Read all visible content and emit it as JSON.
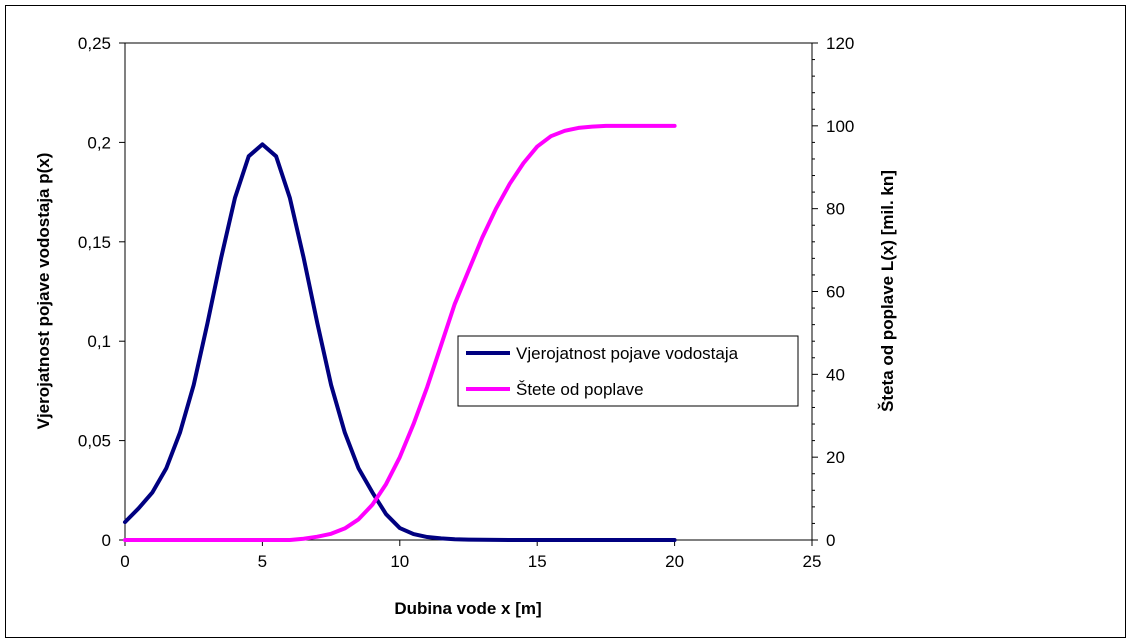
{
  "chart_data": {
    "type": "line",
    "title": "",
    "xlabel": "Dubina vode x [m]",
    "ylabel": "Vjerojatnost pojave vodostaja p(x)",
    "y2label": "Šteta od poplave L(x) [mil. kn]",
    "xlim": [
      0,
      25
    ],
    "ylim": [
      0,
      0.25
    ],
    "y2lim": [
      0,
      120
    ],
    "x_ticks": [
      0,
      5,
      10,
      15,
      20,
      25
    ],
    "x_tick_labels": [
      "0",
      "5",
      "10",
      "15",
      "20",
      "25"
    ],
    "y_ticks": [
      0,
      0.05,
      0.1,
      0.15,
      0.2,
      0.25
    ],
    "y_tick_labels": [
      "0",
      "0,05",
      "0,1",
      "0,15",
      "0,2",
      "0,25"
    ],
    "y2_ticks": [
      0,
      20,
      40,
      60,
      80,
      100,
      120
    ],
    "y2_tick_labels": [
      "0",
      "20",
      "40",
      "60",
      "80",
      "100",
      "120"
    ],
    "grid": false,
    "legend_position": "center-right",
    "series": [
      {
        "name": "Vjerojatnost pojave vodostaja",
        "axis": "left",
        "color": "#000080",
        "x": [
          0,
          0.5,
          1,
          1.5,
          2,
          2.5,
          3,
          3.5,
          4,
          4.5,
          5,
          5.5,
          6,
          6.5,
          7,
          7.5,
          8,
          8.5,
          9,
          9.5,
          10,
          10.5,
          11,
          11.5,
          12,
          12.5,
          13,
          14,
          15,
          16,
          17,
          18,
          19,
          20
        ],
        "y": [
          0.009,
          0.016,
          0.024,
          0.036,
          0.054,
          0.078,
          0.109,
          0.142,
          0.172,
          0.193,
          0.199,
          0.193,
          0.172,
          0.142,
          0.109,
          0.078,
          0.054,
          0.036,
          0.024,
          0.013,
          0.006,
          0.003,
          0.0015,
          0.0008,
          0.0004,
          0.0002,
          0.0001,
          0,
          0,
          0,
          0,
          0,
          0,
          0
        ]
      },
      {
        "name": "Štete od poplave",
        "axis": "right",
        "color": "#FF00FF",
        "x": [
          0,
          1,
          2,
          3,
          4,
          5,
          6,
          6.5,
          7,
          7.5,
          8,
          8.5,
          9,
          9.5,
          10,
          10.5,
          11,
          11.5,
          12,
          12.5,
          13,
          13.5,
          14,
          14.5,
          15,
          15.5,
          16,
          16.5,
          17,
          17.5,
          18,
          19,
          20
        ],
        "y": [
          0,
          0,
          0,
          0,
          0,
          0,
          0,
          0.3,
          0.8,
          1.5,
          2.8,
          5,
          8.5,
          13.5,
          20,
          28,
          37,
          47,
          57,
          65,
          73,
          80,
          86,
          91,
          95,
          97.5,
          98.8,
          99.5,
          99.8,
          100,
          100,
          100,
          100
        ]
      }
    ]
  }
}
